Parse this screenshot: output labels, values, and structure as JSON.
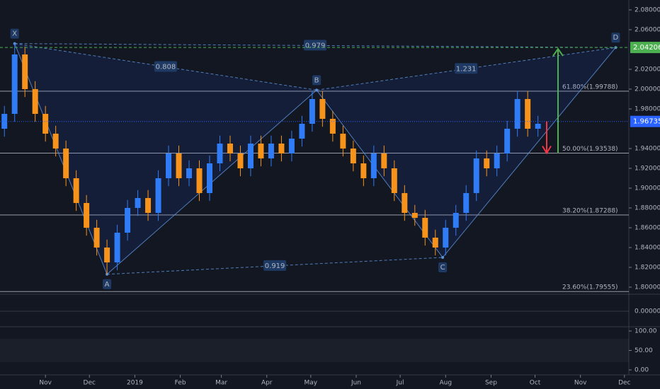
{
  "chart_data": {
    "type": "candlestick",
    "x": [
      3,
      10,
      17,
      24,
      31,
      38,
      45,
      52,
      59,
      66,
      73,
      80,
      87,
      94,
      101,
      108,
      115,
      122,
      129,
      136,
      143,
      150,
      157,
      164,
      171,
      178,
      185,
      192,
      199,
      206,
      213,
      220,
      227,
      234,
      241,
      248,
      255,
      262,
      269,
      276,
      283,
      290,
      297,
      304,
      311,
      318,
      325,
      332,
      339,
      346,
      353,
      360,
      367
    ],
    "open": [
      1.96,
      1.975,
      2.035,
      2.0,
      1.975,
      1.955,
      1.94,
      1.91,
      1.885,
      1.86,
      1.84,
      1.825,
      1.855,
      1.88,
      1.89,
      1.875,
      1.91,
      1.935,
      1.91,
      1.92,
      1.895,
      1.925,
      1.945,
      1.935,
      1.92,
      1.945,
      1.93,
      1.945,
      1.935,
      1.95,
      1.965,
      1.99,
      1.97,
      1.955,
      1.94,
      1.925,
      1.91,
      1.935,
      1.92,
      1.895,
      1.875,
      1.87,
      1.85,
      1.84,
      1.86,
      1.875,
      1.895,
      1.93,
      1.92,
      1.935,
      1.96,
      1.99,
      1.96
    ],
    "high": [
      1.983,
      2.046,
      2.043,
      2.008,
      1.983,
      1.963,
      1.948,
      1.918,
      1.893,
      1.868,
      1.848,
      1.863,
      1.888,
      1.898,
      1.898,
      1.918,
      1.943,
      1.943,
      1.928,
      1.928,
      1.933,
      1.953,
      1.953,
      1.943,
      1.953,
      1.953,
      1.953,
      1.953,
      1.958,
      1.973,
      1.998,
      1.998,
      1.978,
      1.963,
      1.948,
      1.933,
      1.943,
      1.943,
      1.928,
      1.903,
      1.883,
      1.878,
      1.858,
      1.868,
      1.883,
      1.903,
      1.938,
      1.938,
      1.943,
      1.968,
      1.998,
      1.998,
      1.973
    ],
    "low": [
      1.952,
      1.967,
      1.992,
      1.967,
      1.947,
      1.932,
      1.902,
      1.877,
      1.852,
      1.832,
      1.813,
      1.817,
      1.847,
      1.872,
      1.867,
      1.867,
      1.902,
      1.902,
      1.902,
      1.887,
      1.887,
      1.917,
      1.927,
      1.912,
      1.912,
      1.922,
      1.922,
      1.927,
      1.927,
      1.942,
      1.957,
      1.962,
      1.947,
      1.932,
      1.917,
      1.902,
      1.902,
      1.912,
      1.887,
      1.867,
      1.862,
      1.842,
      1.832,
      1.832,
      1.852,
      1.867,
      1.887,
      1.912,
      1.912,
      1.927,
      1.952,
      1.952,
      1.952
    ],
    "close": [
      1.975,
      2.035,
      2.0,
      1.975,
      1.955,
      1.94,
      1.91,
      1.885,
      1.86,
      1.84,
      1.825,
      1.855,
      1.88,
      1.89,
      1.875,
      1.91,
      1.935,
      1.91,
      1.92,
      1.895,
      1.925,
      1.945,
      1.935,
      1.92,
      1.945,
      1.93,
      1.945,
      1.935,
      1.95,
      1.965,
      1.99,
      1.97,
      1.955,
      1.94,
      1.925,
      1.91,
      1.935,
      1.92,
      1.895,
      1.875,
      1.87,
      1.85,
      1.84,
      1.86,
      1.875,
      1.895,
      1.93,
      1.92,
      1.935,
      1.96,
      1.99,
      1.96,
      1.965
    ],
    "up_color": "#2f7cf6",
    "down_color": "#f7931a",
    "xlim": [
      0,
      429
    ],
    "xticks": [
      {
        "value": 31,
        "label": "Nov"
      },
      {
        "value": 61,
        "label": "Dec"
      },
      {
        "value": 92,
        "label": "2019"
      },
      {
        "value": 123,
        "label": "Feb"
      },
      {
        "value": 151,
        "label": "Mar"
      },
      {
        "value": 182,
        "label": "Apr"
      },
      {
        "value": 212,
        "label": "May"
      },
      {
        "value": 243,
        "label": "Jun"
      },
      {
        "value": 273,
        "label": "Jul"
      },
      {
        "value": 304,
        "label": "Aug"
      },
      {
        "value": 335,
        "label": "Sep"
      },
      {
        "value": 365,
        "label": "Oct"
      },
      {
        "value": 396,
        "label": "Nov"
      },
      {
        "value": 426,
        "label": "Dec"
      }
    ],
    "ylim": [
      1.7957,
      2.09
    ],
    "yticks": [
      {
        "value": 1.8,
        "label": "1.80000"
      },
      {
        "value": 1.82,
        "label": "1.82000"
      },
      {
        "value": 1.84,
        "label": "1.84000"
      },
      {
        "value": 1.86,
        "label": "1.86000"
      },
      {
        "value": 1.88,
        "label": "1.88000"
      },
      {
        "value": 1.9,
        "label": "1.90000"
      },
      {
        "value": 1.92,
        "label": "1.92000"
      },
      {
        "value": 1.94,
        "label": "1.94000"
      },
      {
        "value": 1.98,
        "label": "1.98000"
      },
      {
        "value": 2.0,
        "label": "2.00000"
      },
      {
        "value": 2.02,
        "label": "2.02000"
      },
      {
        "value": 2.06,
        "label": "2.06000"
      },
      {
        "value": 2.08,
        "label": "2.08000"
      }
    ],
    "current_price": 1.96735,
    "target_price": 2.04206,
    "fib_levels": [
      {
        "value": 1.99788,
        "label": "61.80%(1.99788)"
      },
      {
        "value": 1.93538,
        "label": "50.00%(1.93538)"
      },
      {
        "value": 1.87288,
        "label": "38.20%(1.87288)"
      },
      {
        "value": 1.79555,
        "label": "23.60%(1.79555)"
      }
    ],
    "pattern_points": [
      {
        "label": "X",
        "x": 10,
        "y": 2.046
      },
      {
        "label": "A",
        "x": 73,
        "y": 1.813
      },
      {
        "label": "B",
        "x": 216,
        "y": 1.999
      },
      {
        "label": "C",
        "x": 302,
        "y": 1.83
      },
      {
        "label": "D",
        "x": 420,
        "y": 2.042
      }
    ],
    "ratios": [
      0.979,
      0.808,
      1.231,
      0.919
    ],
    "macd_yticks": [
      {
        "value": 0,
        "label": "0.00000"
      }
    ],
    "stoch_yticks": [
      {
        "value": 100,
        "label": "100.00"
      },
      {
        "value": 50,
        "label": "50.00"
      },
      {
        "value": 0,
        "label": "0.00"
      }
    ]
  }
}
